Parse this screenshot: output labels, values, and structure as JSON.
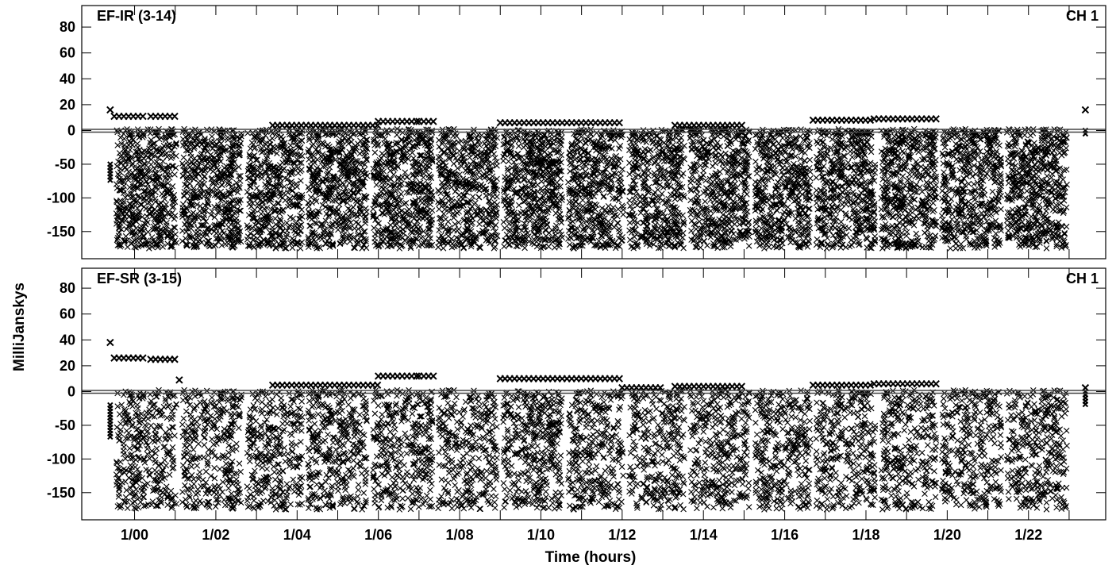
{
  "chart_data": {
    "type": "scatter",
    "xlabel": "Time (hours)",
    "ylabel": "MilliJanskys",
    "x_ticks": [
      "1/00",
      "1/02",
      "1/04",
      "1/06",
      "1/08",
      "1/10",
      "1/12",
      "1/14",
      "1/16",
      "1/18",
      "1/20",
      "1/22"
    ],
    "xlim": [
      -1.3,
      23.9
    ],
    "ylim": [
      -180,
      90
    ],
    "y_ticks": [
      80,
      60,
      40,
      20,
      0,
      -50,
      -100,
      -150
    ],
    "y_scale": "piecewise (positive range expanded relative to negative range)",
    "marker": "x",
    "color": "#000000",
    "zero_line": true,
    "dense_scatter_range": [
      -175,
      0
    ],
    "gaps_hours": [
      1.1,
      2.7,
      4.2,
      5.8,
      7.4,
      9.0,
      10.6,
      12.1,
      13.6,
      15.2,
      16.7,
      18.3,
      19.8,
      21.4
    ],
    "panels": [
      {
        "name": "EF-IR (3-14)",
        "channel": "CH 1",
        "elevated_segments": [
          {
            "x": [
              -0.6,
              -0.5
            ],
            "y": 16
          },
          {
            "x": [
              -0.5,
              0.3
            ],
            "y": 11
          },
          {
            "x": [
              0.4,
              1.1
            ],
            "y": 11
          },
          {
            "x": [
              3.4,
              6.0
            ],
            "y": 4
          },
          {
            "x": [
              6.0,
              7.0
            ],
            "y": 7
          },
          {
            "x": [
              7.0,
              7.4
            ],
            "y": 7
          },
          {
            "x": [
              9.0,
              12.0
            ],
            "y": 6
          },
          {
            "x": [
              13.3,
              15.0
            ],
            "y": 4
          },
          {
            "x": [
              16.7,
              18.2
            ],
            "y": 8
          },
          {
            "x": [
              18.2,
              19.8
            ],
            "y": 9
          },
          {
            "x": [
              23.4,
              23.5
            ],
            "y": 16
          }
        ],
        "negative_streaks": [
          {
            "x": -0.6,
            "y": [
              -75,
              -50
            ]
          },
          {
            "x": 23.4,
            "y": [
              -5,
              0
            ]
          }
        ]
      },
      {
        "name": "EF-SR (3-15)",
        "channel": "CH 1",
        "elevated_segments": [
          {
            "x": [
              -0.6,
              -0.5
            ],
            "y": 38
          },
          {
            "x": [
              -0.5,
              0.3
            ],
            "y": 26
          },
          {
            "x": [
              0.4,
              1.1
            ],
            "y": 25
          },
          {
            "x": [
              1.1,
              1.2
            ],
            "y": 9
          },
          {
            "x": [
              3.4,
              6.0
            ],
            "y": 5
          },
          {
            "x": [
              6.0,
              7.0
            ],
            "y": 12
          },
          {
            "x": [
              7.0,
              7.4
            ],
            "y": 12
          },
          {
            "x": [
              9.0,
              12.0
            ],
            "y": 10
          },
          {
            "x": [
              12.0,
              13.0
            ],
            "y": 3
          },
          {
            "x": [
              13.3,
              15.0
            ],
            "y": 4
          },
          {
            "x": [
              16.7,
              18.2
            ],
            "y": 5
          },
          {
            "x": [
              18.2,
              19.8
            ],
            "y": 6
          },
          {
            "x": [
              23.4,
              23.5
            ],
            "y": 3
          }
        ],
        "negative_streaks": [
          {
            "x": -0.6,
            "y": [
              -70,
              -20
            ]
          },
          {
            "x": 23.4,
            "y": [
              -20,
              0
            ]
          }
        ]
      }
    ]
  }
}
